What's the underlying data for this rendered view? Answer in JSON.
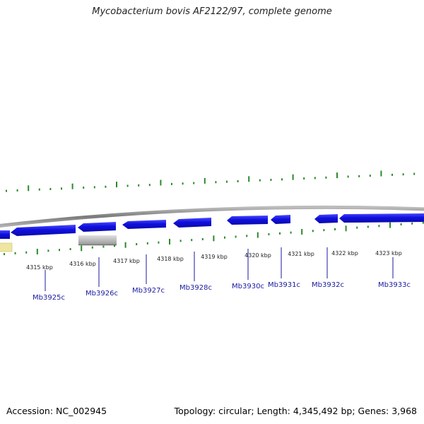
{
  "header": {
    "title": "Mycobacterium bovis AF2122/97, complete genome"
  },
  "footer": {
    "accession": "Accession: NC_002945",
    "summary": "Topology: circular; Length: 4,345,492 bp; Genes: 3,968"
  },
  "colors": {
    "backbone": "#8c8c8c",
    "gene_forward": "#1010e0",
    "gene_reverse": "#1010e0",
    "tick": "#2a8a2a",
    "label": "#1a1aa0",
    "pseudo_gene": "#bdbdbd",
    "yellow_feature": "#eee6a0"
  },
  "scale": {
    "labels": [
      "4315 kbp",
      "4316 kbp",
      "4317 kbp",
      "4318 kbp",
      "4319 kbp",
      "4320 kbp",
      "4321 kbp",
      "4322 kbp",
      "4323 kbp"
    ]
  },
  "genes": [
    {
      "name": "Mb3925c"
    },
    {
      "name": "Mb3926c"
    },
    {
      "name": "Mb3927c"
    },
    {
      "name": "Mb3928c"
    },
    {
      "name": "Mb3930c"
    },
    {
      "name": "Mb3931c"
    },
    {
      "name": "Mb3932c"
    },
    {
      "name": "Mb3933c"
    }
  ]
}
